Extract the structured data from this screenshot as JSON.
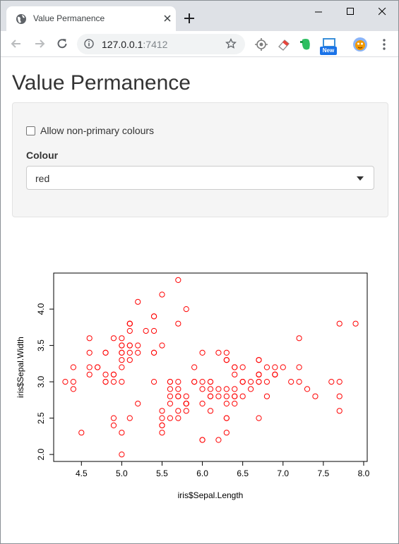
{
  "browser": {
    "tab_title": "Value Permanence",
    "url_host": "127.0.0.1",
    "url_port": ":7412",
    "new_badge": "New"
  },
  "page": {
    "title": "Value Permanence",
    "checkbox_label": "Allow non-primary colours",
    "checkbox_checked": false,
    "select_label": "Colour",
    "select_value": "red"
  },
  "chart_data": {
    "type": "scatter",
    "xlabel": "iris$Sepal.Length",
    "ylabel": "iris$Sepal.Width",
    "xlim": [
      4.3,
      7.9
    ],
    "ylim": [
      2.0,
      4.4
    ],
    "xticks": [
      "4.5",
      "5.0",
      "5.5",
      "6.0",
      "6.5",
      "7.0",
      "7.5",
      "8.0"
    ],
    "yticks": [
      "2.0",
      "2.5",
      "3.0",
      "3.5",
      "4.0"
    ],
    "point_color": "#ff0000",
    "marker": "open-circle",
    "x": [
      5.1,
      4.9,
      4.7,
      4.6,
      5.0,
      5.4,
      4.6,
      5.0,
      4.4,
      4.9,
      5.4,
      4.8,
      4.8,
      4.3,
      5.8,
      5.7,
      5.4,
      5.1,
      5.7,
      5.1,
      5.4,
      5.1,
      4.6,
      5.1,
      4.8,
      5.0,
      5.0,
      5.2,
      5.2,
      4.7,
      4.8,
      5.4,
      5.2,
      5.5,
      4.9,
      5.0,
      5.5,
      4.9,
      4.4,
      5.1,
      5.0,
      4.5,
      4.4,
      5.0,
      5.1,
      4.8,
      5.1,
      4.6,
      5.3,
      5.0,
      7.0,
      6.4,
      6.9,
      5.5,
      6.5,
      5.7,
      6.3,
      4.9,
      6.6,
      5.2,
      5.0,
      5.9,
      6.0,
      6.1,
      5.6,
      6.7,
      5.6,
      5.8,
      6.2,
      5.6,
      5.9,
      6.1,
      6.3,
      6.1,
      6.4,
      6.6,
      6.8,
      6.7,
      6.0,
      5.7,
      5.5,
      5.5,
      5.8,
      6.0,
      5.4,
      6.0,
      6.7,
      6.3,
      5.6,
      5.5,
      5.5,
      6.1,
      5.8,
      5.0,
      5.6,
      5.7,
      5.7,
      6.2,
      5.1,
      5.7,
      6.3,
      5.8,
      7.1,
      6.3,
      6.5,
      7.6,
      4.9,
      7.3,
      6.7,
      7.2,
      6.5,
      6.4,
      6.8,
      5.7,
      5.8,
      6.4,
      6.5,
      7.7,
      7.7,
      6.0,
      6.9,
      5.6,
      7.7,
      6.3,
      6.7,
      7.2,
      6.2,
      6.1,
      6.4,
      7.2,
      7.4,
      7.9,
      6.4,
      6.3,
      6.1,
      7.7,
      6.3,
      6.4,
      6.0,
      6.9,
      6.7,
      6.9,
      5.8,
      6.8,
      6.7,
      6.7,
      6.3,
      6.5,
      6.2,
      5.9
    ],
    "y": [
      3.5,
      3.0,
      3.2,
      3.1,
      3.6,
      3.9,
      3.4,
      3.4,
      2.9,
      3.1,
      3.7,
      3.4,
      3.0,
      3.0,
      4.0,
      4.4,
      3.9,
      3.5,
      3.8,
      3.8,
      3.4,
      3.7,
      3.6,
      3.3,
      3.4,
      3.0,
      3.4,
      3.5,
      3.4,
      3.2,
      3.1,
      3.4,
      4.1,
      4.2,
      3.1,
      3.2,
      3.5,
      3.6,
      3.0,
      3.4,
      3.5,
      2.3,
      3.2,
      3.5,
      3.8,
      3.0,
      3.8,
      3.2,
      3.7,
      3.3,
      3.2,
      3.2,
      3.1,
      2.3,
      2.8,
      2.8,
      3.3,
      2.4,
      2.9,
      2.7,
      2.0,
      3.0,
      2.2,
      2.9,
      2.9,
      3.1,
      3.0,
      2.7,
      2.2,
      2.5,
      3.2,
      2.8,
      2.5,
      2.8,
      2.9,
      3.0,
      2.8,
      3.0,
      2.9,
      2.6,
      2.4,
      2.4,
      2.7,
      2.7,
      3.0,
      3.4,
      3.1,
      2.3,
      3.0,
      2.5,
      2.6,
      3.0,
      2.6,
      2.3,
      2.7,
      3.0,
      2.9,
      2.9,
      2.5,
      2.8,
      3.3,
      2.7,
      3.0,
      2.9,
      3.0,
      3.0,
      2.5,
      2.9,
      2.5,
      3.6,
      3.2,
      2.7,
      3.0,
      2.5,
      2.8,
      3.2,
      3.0,
      3.8,
      2.6,
      2.2,
      3.2,
      2.8,
      2.8,
      2.7,
      3.3,
      3.2,
      2.8,
      3.0,
      2.8,
      3.0,
      2.8,
      3.8,
      2.8,
      2.8,
      2.6,
      3.0,
      3.4,
      3.1,
      3.0,
      3.1,
      3.1,
      3.1,
      2.7,
      3.2,
      3.3,
      3.0,
      2.5,
      3.0,
      3.4,
      3.0
    ],
    "grid": false,
    "legend": "none"
  }
}
